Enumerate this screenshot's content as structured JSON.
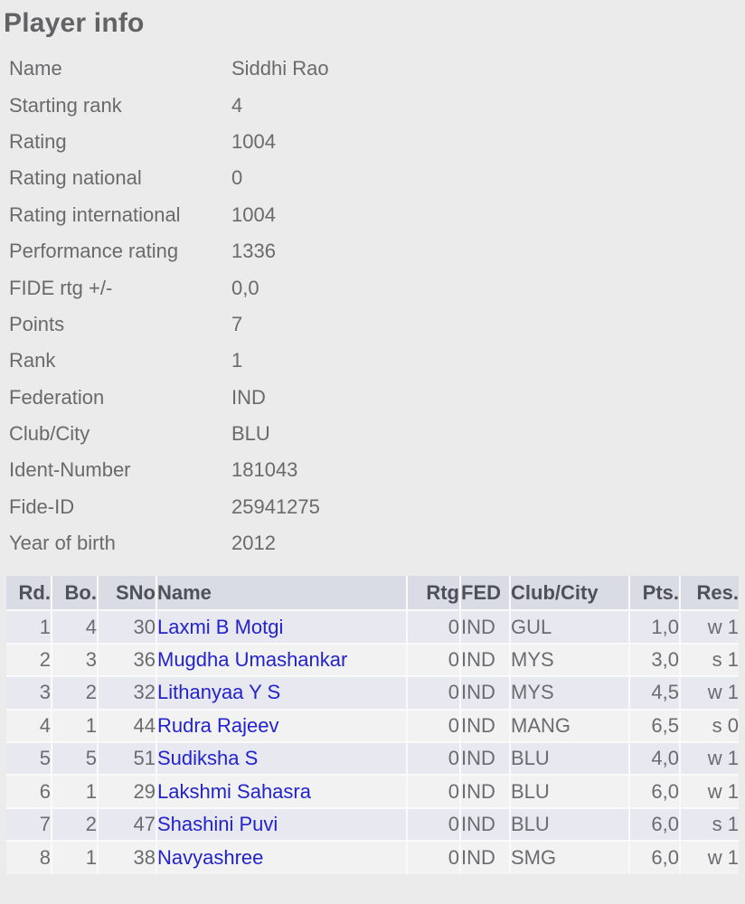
{
  "title": "Player info",
  "player_info": [
    {
      "label": "Name",
      "value": "Siddhi Rao"
    },
    {
      "label": "Starting rank",
      "value": "4"
    },
    {
      "label": "Rating",
      "value": "1004"
    },
    {
      "label": "Rating national",
      "value": "0"
    },
    {
      "label": "Rating international",
      "value": "1004"
    },
    {
      "label": "Performance rating",
      "value": "1336"
    },
    {
      "label": "FIDE rtg +/-",
      "value": "0,0"
    },
    {
      "label": "Points",
      "value": "7"
    },
    {
      "label": "Rank",
      "value": "1"
    },
    {
      "label": "Federation",
      "value": "IND"
    },
    {
      "label": "Club/City",
      "value": "BLU"
    },
    {
      "label": "Ident-Number",
      "value": "181043"
    },
    {
      "label": "Fide-ID",
      "value": "25941275"
    },
    {
      "label": "Year of birth",
      "value": "2012"
    }
  ],
  "results_table": {
    "columns": [
      "Rd.",
      "Bo.",
      "SNo",
      "Name",
      "Rtg",
      "FED",
      "Club/City",
      "Pts.",
      "Res."
    ],
    "rows": [
      {
        "rd": "1",
        "bo": "4",
        "sno": "30",
        "name": "Laxmi B Motgi",
        "rtg": "0",
        "fed": "IND",
        "club_city": "GUL",
        "pts": "1,0",
        "res": "w 1"
      },
      {
        "rd": "2",
        "bo": "3",
        "sno": "36",
        "name": "Mugdha Umashankar",
        "rtg": "0",
        "fed": "IND",
        "club_city": "MYS",
        "pts": "3,0",
        "res": "s 1"
      },
      {
        "rd": "3",
        "bo": "2",
        "sno": "32",
        "name": "Lithanyaa Y S",
        "rtg": "0",
        "fed": "IND",
        "club_city": "MYS",
        "pts": "4,5",
        "res": "w 1"
      },
      {
        "rd": "4",
        "bo": "1",
        "sno": "44",
        "name": "Rudra Rajeev",
        "rtg": "0",
        "fed": "IND",
        "club_city": "MANG",
        "pts": "6,5",
        "res": "s 0"
      },
      {
        "rd": "5",
        "bo": "5",
        "sno": "51",
        "name": "Sudiksha S",
        "rtg": "0",
        "fed": "IND",
        "club_city": "BLU",
        "pts": "4,0",
        "res": "w 1"
      },
      {
        "rd": "6",
        "bo": "1",
        "sno": "29",
        "name": "Lakshmi Sahasra",
        "rtg": "0",
        "fed": "IND",
        "club_city": "BLU",
        "pts": "6,0",
        "res": "w 1"
      },
      {
        "rd": "7",
        "bo": "2",
        "sno": "47",
        "name": "Shashini Puvi",
        "rtg": "0",
        "fed": "IND",
        "club_city": "BLU",
        "pts": "6,0",
        "res": "s 1"
      },
      {
        "rd": "8",
        "bo": "1",
        "sno": "38",
        "name": "Navyashree",
        "rtg": "0",
        "fed": "IND",
        "club_city": "SMG",
        "pts": "6,0",
        "res": "w 1"
      }
    ]
  },
  "colors": {
    "page_background": "#ebebeb",
    "table_header_background": "#d9dbe5",
    "row_odd_background": "#e8e8f0",
    "row_even_background": "#f2f2f3",
    "cell_separator": "#fafafa",
    "link_blue": "#2323cb",
    "text_gray": "#6a6a6c"
  }
}
